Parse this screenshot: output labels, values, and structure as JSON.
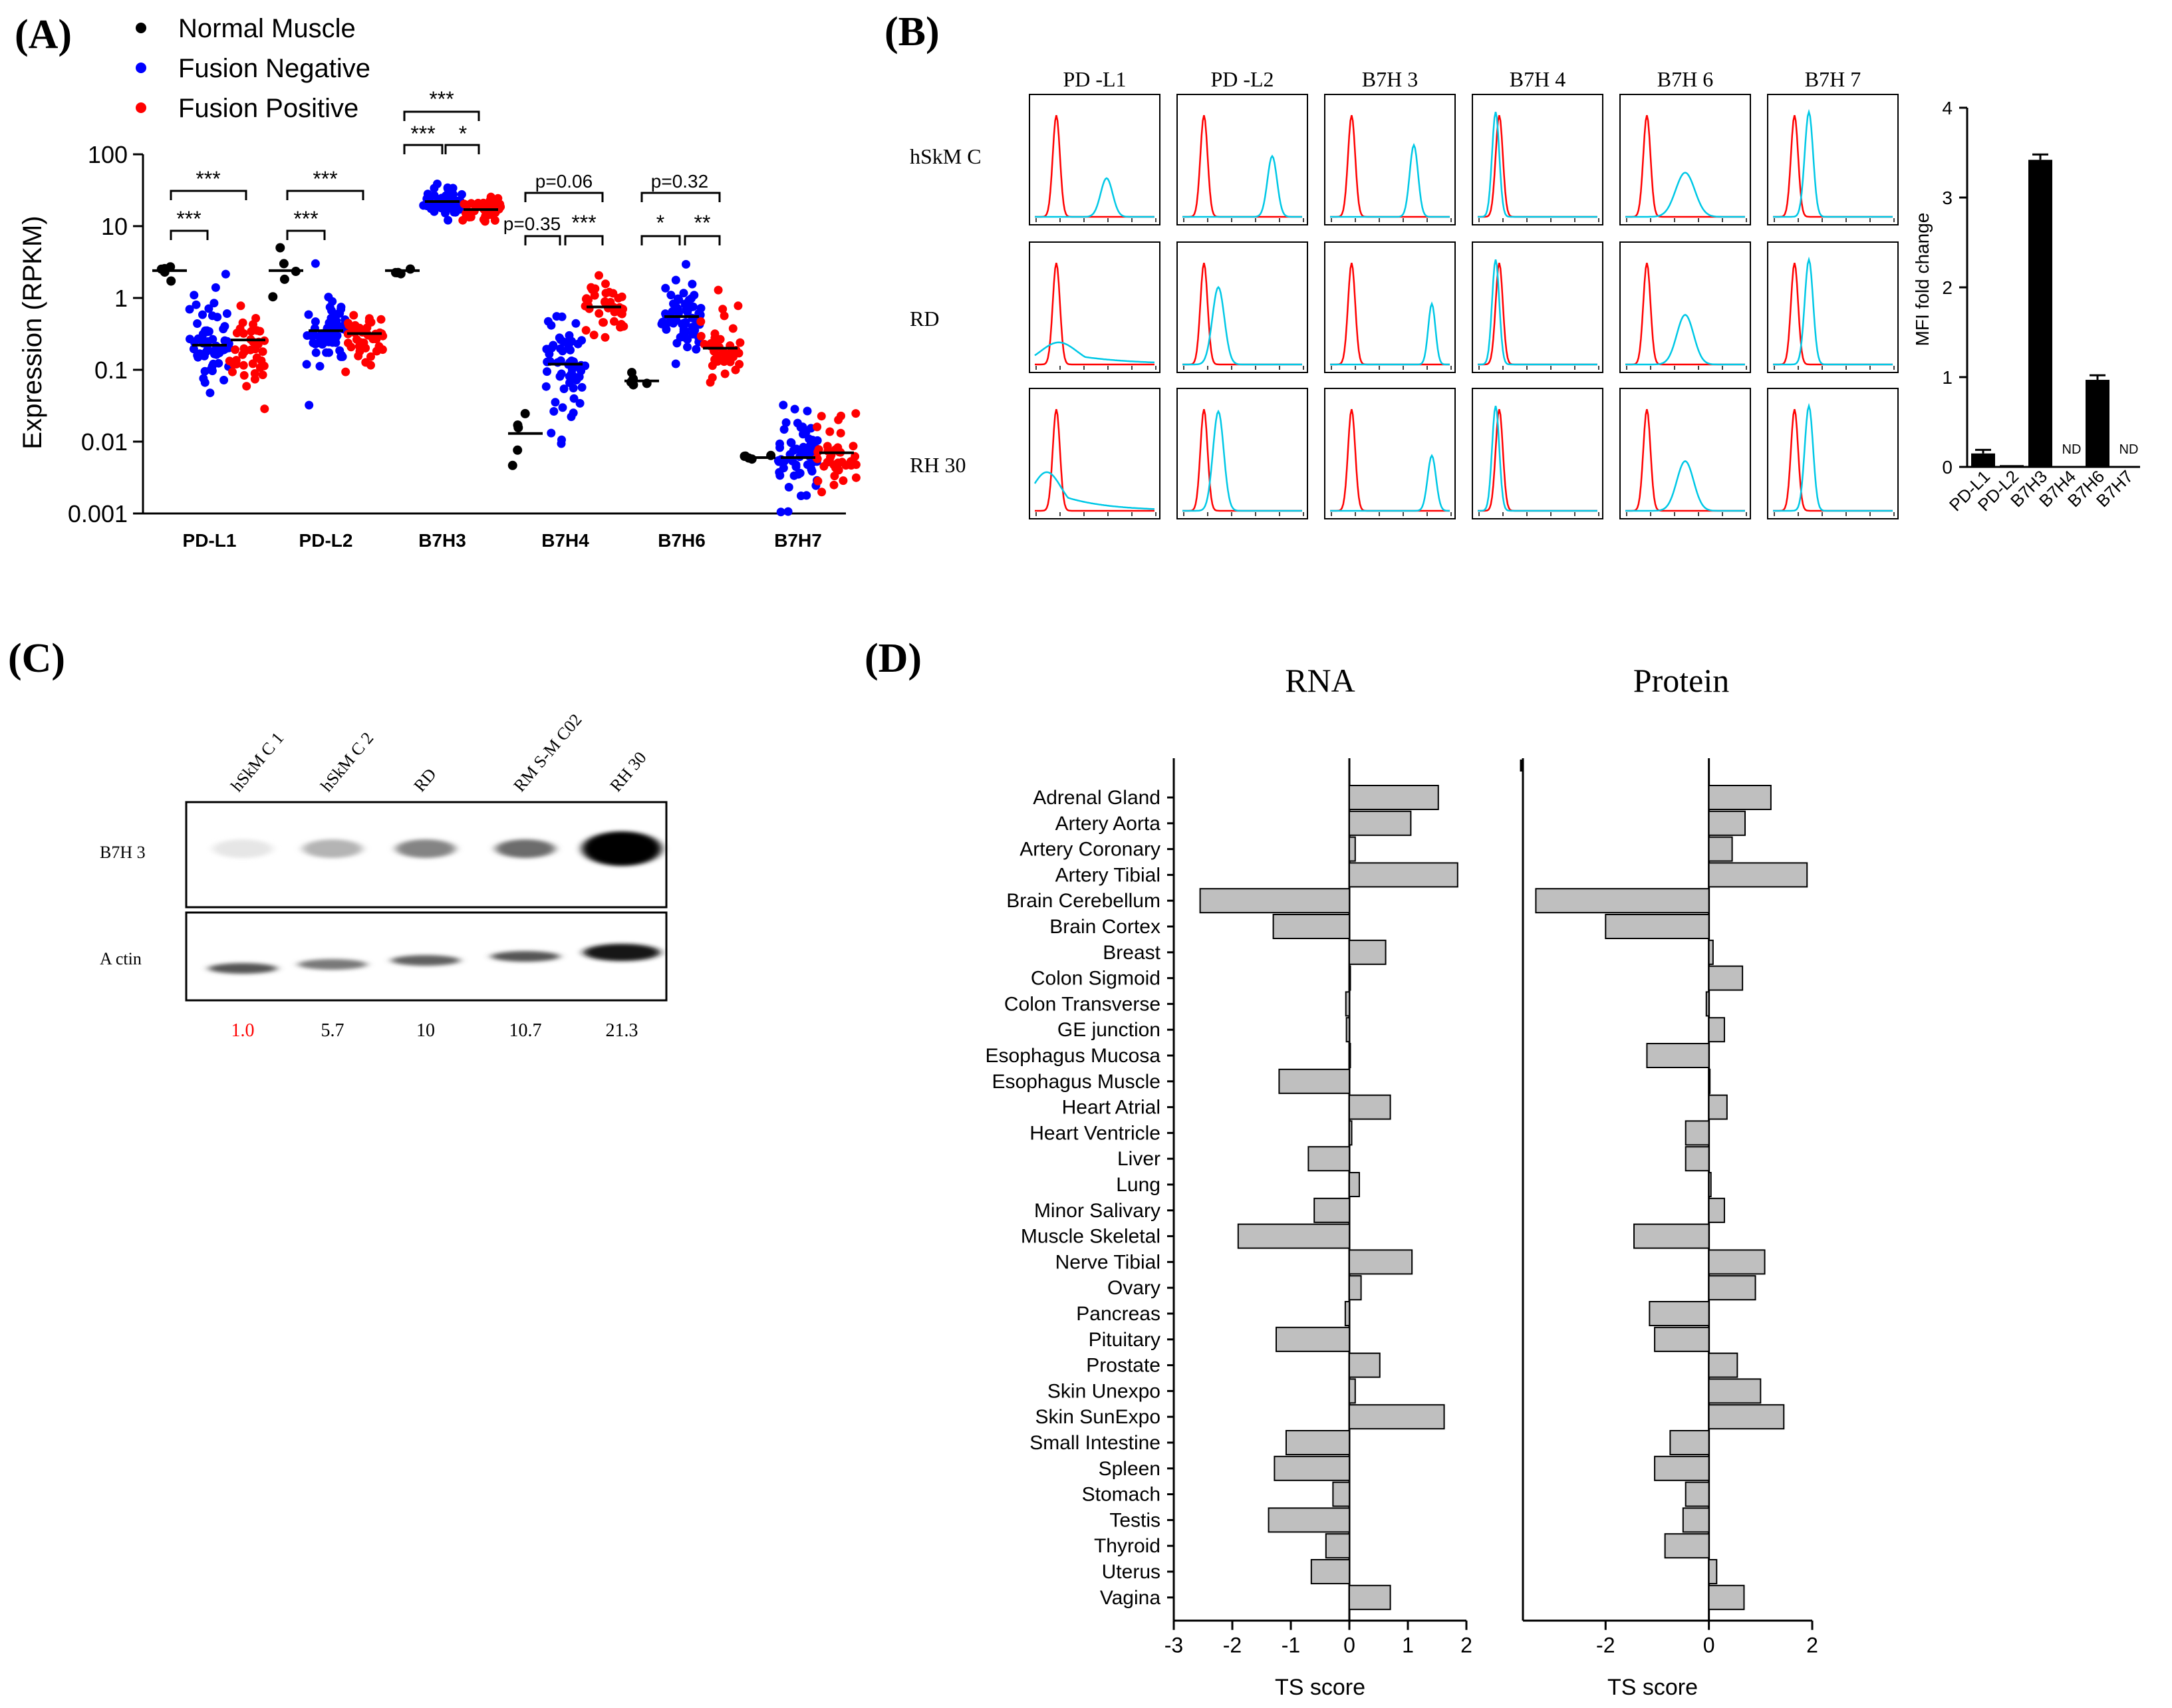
{
  "colors": {
    "normal": "#000000",
    "negative": "#0000ff",
    "positive": "#ff0000",
    "bar_fill": "#bfbfbf",
    "isotype": "#ff0000",
    "stain": "#00c8e6"
  },
  "panels": {
    "A": "(A)",
    "B": "(B)",
    "C": "(C)",
    "D": "(D)"
  },
  "chart_data": [
    {
      "panel": "A",
      "type": "scatter",
      "ylabel": "Expression (RPKM)",
      "yscale": "log",
      "ylim": [
        0.001,
        100
      ],
      "yticks": [
        "0.001",
        "0.01",
        "0.1",
        "1",
        "10",
        "100"
      ],
      "categories": [
        "PD-L1",
        "PD-L2",
        "B7H3",
        "B7H4",
        "B7H6",
        "B7H7"
      ],
      "legend": [
        {
          "name": "Normal Muscle",
          "color": "#000000"
        },
        {
          "name": "Fusion Negative",
          "color": "#0000ff"
        },
        {
          "name": "Fusion Positive",
          "color": "#ff0000"
        }
      ],
      "series": [
        {
          "name": "Normal Muscle",
          "n": 5,
          "medians": [
            2.4,
            2.4,
            2.4,
            0.013,
            0.07,
            0.006
          ],
          "log_spread": [
            0.1,
            0.35,
            0.1,
            0.45,
            0.1,
            0.05
          ]
        },
        {
          "name": "Fusion Negative",
          "n": 60,
          "medians": [
            0.22,
            0.35,
            22,
            0.12,
            0.55,
            0.006
          ],
          "log_spread": [
            0.55,
            0.5,
            0.2,
            0.7,
            0.45,
            0.6
          ]
        },
        {
          "name": "Fusion Positive",
          "n": 40,
          "medians": [
            0.26,
            0.32,
            17,
            0.75,
            0.2,
            0.007
          ],
          "log_spread": [
            0.5,
            0.4,
            0.15,
            0.35,
            0.55,
            0.4
          ]
        }
      ],
      "annotations": [
        {
          "category": "PD-L1",
          "lower": "***",
          "upper": "***"
        },
        {
          "category": "PD-L2",
          "lower": "***",
          "upper": "***"
        },
        {
          "category": "B7H3",
          "left": "***",
          "right": "*",
          "upper": "***"
        },
        {
          "category": "B7H4",
          "left": "p=0.35",
          "right": "***",
          "upper": "p=0.06"
        },
        {
          "category": "B7H6",
          "left": "*",
          "right": "**",
          "upper": "p=0.32"
        }
      ]
    },
    {
      "panel": "B",
      "type": "histogram-grid",
      "columns": [
        "PD-L1",
        "PD-L2",
        "B7H3",
        "B7H4",
        "B7H6",
        "B7H7"
      ],
      "column_labels": [
        "PD -L1",
        "PD -L2",
        "B7H 3",
        "B7H 4",
        "B7H 6",
        "B7H 7"
      ],
      "rows": [
        "hSkMC",
        "RD",
        "RH30"
      ],
      "row_labels": [
        "hSkM C",
        "RD",
        "RH 30"
      ],
      "stain_peak_position": [
        [
          0.6,
          0.75,
          0.7,
          0.15,
          0.5,
          0.3
        ],
        [
          0.2,
          0.3,
          0.85,
          0.15,
          0.5,
          0.3
        ],
        [
          0.1,
          0.3,
          0.85,
          0.15,
          0.5,
          0.3
        ]
      ],
      "stain_peak_height": [
        [
          0.35,
          0.55,
          0.65,
          0.95,
          0.4,
          0.95
        ],
        [
          0.2,
          0.7,
          0.55,
          0.95,
          0.45,
          0.95
        ],
        [
          0.35,
          0.9,
          0.5,
          0.95,
          0.45,
          0.95
        ]
      ],
      "stain_peak_width": [
        [
          0.05,
          0.04,
          0.035,
          0.03,
          0.08,
          0.035
        ],
        [
          0.15,
          0.05,
          0.03,
          0.03,
          0.07,
          0.035
        ],
        [
          0.12,
          0.045,
          0.035,
          0.03,
          0.07,
          0.035
        ]
      ]
    },
    {
      "panel": "B",
      "type": "bar",
      "ylabel": "MFI fold change",
      "ylim": [
        0,
        4
      ],
      "yticks": [
        "0",
        "1",
        "2",
        "3",
        "4"
      ],
      "categories": [
        "PD-L1",
        "PD-L2",
        "B7H3",
        "B7H4",
        "B7H6",
        "B7H7"
      ],
      "values": [
        0.15,
        0.02,
        3.42,
        0,
        0.97,
        0
      ],
      "errors": [
        0.04,
        0,
        0.06,
        0,
        0.05,
        0
      ],
      "value_labels": [
        "",
        "",
        "",
        "ND",
        "",
        "ND"
      ]
    },
    {
      "panel": "C",
      "type": "western-blot",
      "lanes": [
        "hSkM C 1",
        "hSkM C 2",
        "RD",
        "RM S-M C02",
        "RH 30"
      ],
      "blots": [
        "B7H 3",
        "A ctin"
      ],
      "b7h3_intensity": [
        0.04,
        0.25,
        0.45,
        0.55,
        1.0
      ],
      "actin_intensity": [
        0.65,
        0.5,
        0.6,
        0.65,
        0.9
      ],
      "quantification": [
        "1.0",
        "5.7",
        "10",
        "10.7",
        "21.3"
      ]
    },
    {
      "panel": "D",
      "type": "bar",
      "orientation": "horizontal",
      "xlabel": "TS score",
      "categories": [
        "Adrenal Gland",
        "Artery Aorta",
        "Artery Coronary",
        "Artery Tibial",
        "Brain Cerebellum",
        "Brain Cortex",
        "Breast",
        "Colon Sigmoid",
        "Colon Transverse",
        "GE junction",
        "Esophagus Mucosa",
        "Esophagus Muscle",
        "Heart Atrial",
        "Heart Ventricle",
        "Liver",
        "Lung",
        "Minor Salivary",
        "Muscle Skeletal",
        "Nerve Tibial",
        "Ovary",
        "Pancreas",
        "Pituitary",
        "Prostate",
        "Skin Unexpo",
        "Skin SunExpo",
        "Small Intestine",
        "Spleen",
        "Stomach",
        "Testis",
        "Thyroid",
        "Uterus",
        "Vagina"
      ],
      "series": [
        {
          "name": "RNA",
          "xlim": [
            -3,
            2
          ],
          "xticks": [
            "-3",
            "-2",
            "-1",
            "0",
            "1",
            "2"
          ],
          "values": [
            1.52,
            1.05,
            0.1,
            1.85,
            -2.55,
            -1.3,
            0.62,
            0,
            -0.06,
            -0.05,
            0,
            -1.2,
            0.7,
            0.04,
            -0.7,
            0.17,
            -0.6,
            -1.9,
            1.07,
            0.2,
            -0.07,
            -1.25,
            0.52,
            0.1,
            1.62,
            -1.08,
            -1.28,
            -0.28,
            -1.38,
            -0.4,
            -0.65,
            0.7
          ]
        },
        {
          "name": "Protein",
          "xlim": [
            -3.6,
            2
          ],
          "xticks": [
            "-2",
            "0",
            "2"
          ],
          "values": [
            1.2,
            0.7,
            0.45,
            1.9,
            -3.35,
            -2.0,
            0.08,
            0.65,
            -0.05,
            0.3,
            -1.2,
            0,
            0.35,
            -0.45,
            -0.45,
            0.04,
            0.3,
            -1.45,
            1.08,
            0.9,
            -1.15,
            -1.05,
            0.55,
            1.0,
            1.45,
            -0.75,
            -1.05,
            -0.45,
            -0.5,
            -0.85,
            0.15,
            0.68
          ]
        }
      ]
    }
  ]
}
